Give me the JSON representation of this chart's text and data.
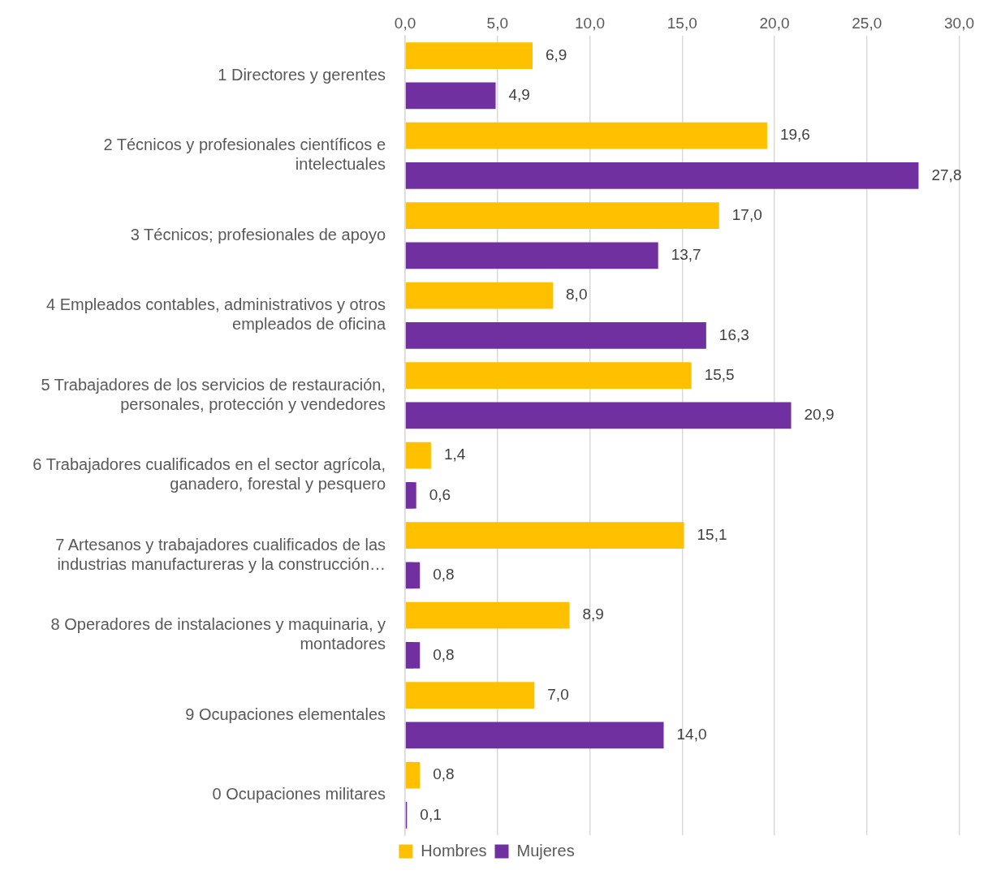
{
  "chart_data": {
    "type": "bar",
    "orientation": "horizontal",
    "categories": [
      "1 Directores y gerentes",
      "2 Técnicos y profesionales científicos e intelectuales",
      "3 Técnicos; profesionales de apoyo",
      "4 Empleados contables, administrativos y otros empleados de oficina",
      "5 Trabajadores de los servicios de restauración, personales, protección y vendedores",
      "6 Trabajadores cualificados en el sector agrícola, ganadero, forestal y pesquero",
      "7 Artesanos y trabajadores cualificados de las industrias manufactureras y la construcción…",
      "8 Operadores de instalaciones y maquinaria, y montadores",
      "9 Ocupaciones elementales",
      "0 Ocupaciones militares"
    ],
    "series": [
      {
        "name": "Hombres",
        "color": "#ffc000",
        "values": [
          6.9,
          19.6,
          17.0,
          8.0,
          15.5,
          1.4,
          15.1,
          8.9,
          7.0,
          0.8
        ],
        "value_labels": [
          "6,9",
          "19,6",
          "17,0",
          "8,0",
          "15,5",
          "1,4",
          "15,1",
          "8,9",
          "7,0",
          "0,8"
        ]
      },
      {
        "name": "Mujeres",
        "color": "#7030a0",
        "values": [
          4.9,
          27.8,
          13.7,
          16.3,
          20.9,
          0.6,
          0.8,
          0.8,
          14.0,
          0.1
        ],
        "value_labels": [
          "4,9",
          "27,8",
          "13,7",
          "16,3",
          "20,9",
          "0,6",
          "0,8",
          "0,8",
          "14,0",
          "0,1"
        ]
      }
    ],
    "xlim": [
      0,
      30
    ],
    "xticks": [
      {
        "value": 0,
        "label": "0,0"
      },
      {
        "value": 5,
        "label": "5,0"
      },
      {
        "value": 10,
        "label": "10,0"
      },
      {
        "value": 15,
        "label": "15,0"
      },
      {
        "value": 20,
        "label": "20,0"
      },
      {
        "value": 25,
        "label": "25,0"
      },
      {
        "value": 30,
        "label": "30,0"
      }
    ],
    "grid": "x",
    "legend": "bottom"
  }
}
